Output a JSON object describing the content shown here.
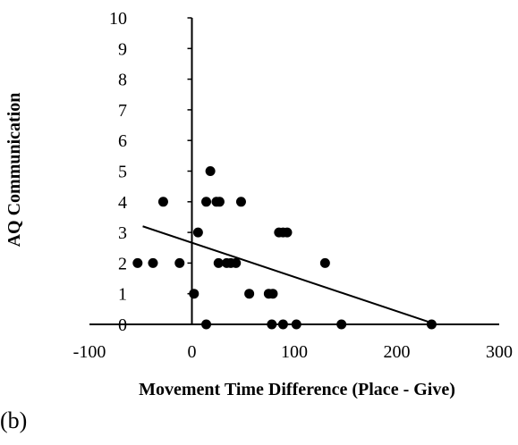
{
  "chart_data": {
    "type": "scatter",
    "xlabel": "Movement Time Difference (Place - Give)",
    "ylabel": "AQ Communication",
    "xlim": [
      -100,
      300
    ],
    "ylim": [
      0,
      10
    ],
    "x_ticks": [
      "-100",
      "0",
      "100",
      "200",
      "300"
    ],
    "y_ticks": [
      "0",
      "1",
      "2",
      "3",
      "4",
      "5",
      "6",
      "7",
      "8",
      "9",
      "10"
    ],
    "grid": false,
    "points": [
      {
        "x": -53,
        "y": 2
      },
      {
        "x": -38,
        "y": 2
      },
      {
        "x": -28,
        "y": 4
      },
      {
        "x": -12,
        "y": 2
      },
      {
        "x": 2,
        "y": 1
      },
      {
        "x": 6,
        "y": 3
      },
      {
        "x": 14,
        "y": 0
      },
      {
        "x": 14,
        "y": 4
      },
      {
        "x": 18,
        "y": 5
      },
      {
        "x": 24,
        "y": 4
      },
      {
        "x": 27,
        "y": 4
      },
      {
        "x": 26,
        "y": 2
      },
      {
        "x": 34,
        "y": 2
      },
      {
        "x": 38,
        "y": 2
      },
      {
        "x": 43,
        "y": 2
      },
      {
        "x": 48,
        "y": 4
      },
      {
        "x": 56,
        "y": 1
      },
      {
        "x": 75,
        "y": 1
      },
      {
        "x": 79,
        "y": 1
      },
      {
        "x": 78,
        "y": 0
      },
      {
        "x": 85,
        "y": 3
      },
      {
        "x": 89,
        "y": 3
      },
      {
        "x": 89,
        "y": 0
      },
      {
        "x": 93,
        "y": 3
      },
      {
        "x": 102,
        "y": 0
      },
      {
        "x": 130,
        "y": 2
      },
      {
        "x": 146,
        "y": 0
      },
      {
        "x": 234,
        "y": 0
      }
    ],
    "trendline": {
      "x": [
        -48,
        234
      ],
      "y": [
        3.2,
        0.05
      ]
    }
  },
  "panel_label": "(b)"
}
